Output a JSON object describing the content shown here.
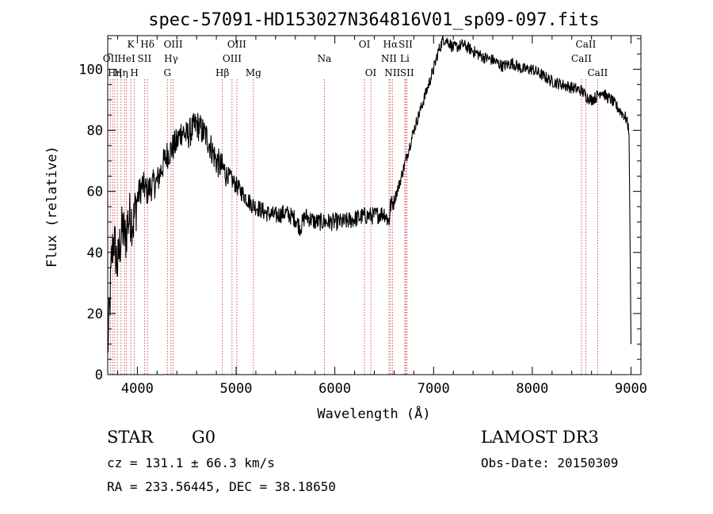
{
  "chart_data": {
    "type": "line",
    "title": "spec-57091-HD153027N364816V01_sp09-097.fits",
    "xlabel": "Wavelength (Å)",
    "ylabel": "Flux (relative)",
    "xlim": [
      3700,
      9100
    ],
    "ylim": [
      0,
      111
    ],
    "xticks": [
      4000,
      5000,
      6000,
      7000,
      8000,
      9000
    ],
    "yticks": [
      0,
      20,
      40,
      60,
      80,
      100
    ],
    "xtick_labels": [
      "4000",
      "5000",
      "6000",
      "7000",
      "8000",
      "9000"
    ],
    "ytick_labels": [
      "0",
      "20",
      "40",
      "60",
      "80",
      "100"
    ],
    "series": [
      {
        "name": "flux",
        "x": [
          3700,
          3720,
          3740,
          3760,
          3780,
          3800,
          3820,
          3850,
          3880,
          3900,
          3930,
          3960,
          4000,
          4050,
          4100,
          4150,
          4200,
          4250,
          4300,
          4350,
          4400,
          4450,
          4500,
          4550,
          4600,
          4650,
          4700,
          4750,
          4800,
          4850,
          4900,
          4950,
          5000,
          5050,
          5100,
          5150,
          5200,
          5300,
          5400,
          5500,
          5600,
          5650,
          5700,
          5800,
          5900,
          6000,
          6100,
          6200,
          6300,
          6400,
          6500,
          6550,
          6560,
          6600,
          6650,
          6700,
          6750,
          6800,
          6850,
          6900,
          6950,
          7000,
          7050,
          7100,
          7150,
          7200,
          7300,
          7400,
          7500,
          7600,
          7700,
          7800,
          7900,
          8000,
          8100,
          8200,
          8300,
          8400,
          8500,
          8550,
          8600,
          8650,
          8700,
          8750,
          8800,
          8850,
          8900,
          8950,
          8980,
          9000
        ],
        "y": [
          8,
          22,
          38,
          45,
          40,
          35,
          42,
          48,
          44,
          50,
          52,
          50,
          58,
          62,
          60,
          62,
          63,
          68,
          72,
          74,
          76,
          80,
          78,
          80,
          82,
          80,
          78,
          74,
          70,
          68,
          66,
          64,
          62,
          60,
          58,
          56,
          55,
          53,
          52,
          53,
          51,
          48,
          52,
          50,
          50,
          50,
          50,
          51,
          52,
          52,
          53,
          50,
          55,
          57,
          62,
          68,
          74,
          80,
          85,
          90,
          95,
          100,
          106,
          110,
          109,
          107,
          108,
          106,
          104,
          103,
          101,
          102,
          100,
          100,
          98,
          96,
          95,
          94,
          93,
          91,
          90,
          91,
          93,
          91,
          90,
          88,
          86,
          84,
          80,
          10
        ]
      }
    ],
    "lines": [
      {
        "wl": 3727,
        "label": "OII",
        "row": 1
      },
      {
        "wl": 3750,
        "label": "",
        "row": 0
      },
      {
        "wl": 3771,
        "label": "Hη",
        "row": 2
      },
      {
        "wl": 3798,
        "label": "",
        "row": 0
      },
      {
        "wl": 3835,
        "label": "Hη",
        "row": 2
      },
      {
        "wl": 3869,
        "label": "",
        "row": 0
      },
      {
        "wl": 3889,
        "label": "HeI",
        "row": 1
      },
      {
        "wl": 3934,
        "label": "K",
        "row": 0
      },
      {
        "wl": 3970,
        "label": "H",
        "row": 2
      },
      {
        "wl": 4072,
        "label": "SII",
        "row": 1
      },
      {
        "wl": 4102,
        "label": "Hδ",
        "row": 0
      },
      {
        "wl": 4304,
        "label": "G",
        "row": 2
      },
      {
        "wl": 4341,
        "label": "Hγ",
        "row": 1
      },
      {
        "wl": 4363,
        "label": "OIII",
        "row": 0
      },
      {
        "wl": 4861,
        "label": "Hβ",
        "row": 2
      },
      {
        "wl": 4959,
        "label": "OIII",
        "row": 1
      },
      {
        "wl": 5007,
        "label": "OIII",
        "row": 0
      },
      {
        "wl": 5175,
        "label": "Mg",
        "row": 2
      },
      {
        "wl": 5894,
        "label": "Na",
        "row": 1
      },
      {
        "wl": 6300,
        "label": "OI",
        "row": 0
      },
      {
        "wl": 6364,
        "label": "OI",
        "row": 2
      },
      {
        "wl": 6548,
        "label": "NII",
        "row": 1
      },
      {
        "wl": 6563,
        "label": "Hα",
        "row": 0
      },
      {
        "wl": 6583,
        "label": "NII",
        "row": 2
      },
      {
        "wl": 6708,
        "label": "Li",
        "row": 1
      },
      {
        "wl": 6717,
        "label": "SII",
        "row": 0
      },
      {
        "wl": 6731,
        "label": "SII",
        "row": 2
      },
      {
        "wl": 8498,
        "label": "CaII",
        "row": 1
      },
      {
        "wl": 8542,
        "label": "CaII",
        "row": 0
      },
      {
        "wl": 8662,
        "label": "CaII",
        "row": 2
      }
    ],
    "top_left_labels": [
      "Hδ",
      "OII",
      "HηHη"
    ]
  },
  "info": {
    "object_class": "STAR",
    "subclass": "G0",
    "survey": "LAMOST DR3",
    "redshift_line": "cz = 131.1 ± 66.3 km/s",
    "obs_date": "Obs-Date: 20150309",
    "coords": "RA = 233.56445, DEC =  38.18650"
  }
}
